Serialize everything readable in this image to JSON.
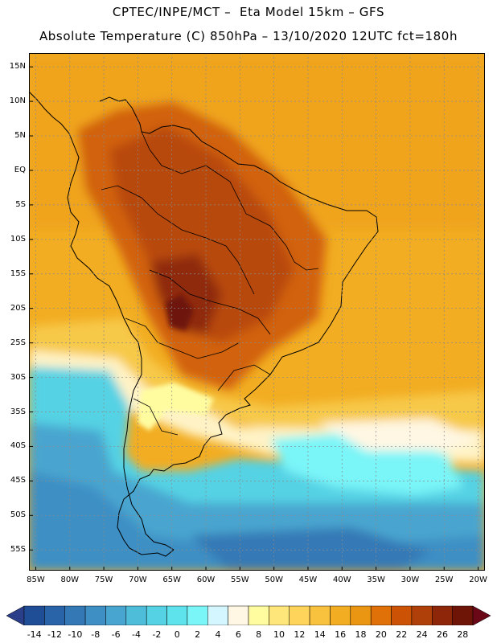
{
  "header": {
    "line1": "CPTEC/INPE/MCT –  Eta Model 15km – GFS",
    "line2": "Absolute Temperature (C) 850hPa – 13/10/2020 12UTC fct=180h"
  },
  "map": {
    "lat_labels": [
      "15N",
      "10N",
      "5N",
      "EQ",
      "5S",
      "10S",
      "15S",
      "20S",
      "25S",
      "30S",
      "35S",
      "40S",
      "45S",
      "50S",
      "55S"
    ],
    "lat_values": [
      15,
      10,
      5,
      0,
      -5,
      -10,
      -15,
      -20,
      -25,
      -30,
      -35,
      -40,
      -45,
      -50,
      -55
    ],
    "lon_labels": [
      "85W",
      "80W",
      "75W",
      "70W",
      "65W",
      "60W",
      "55W",
      "50W",
      "45W",
      "40W",
      "35W",
      "30W",
      "25W",
      "20W"
    ],
    "lon_values": [
      -85,
      -80,
      -75,
      -70,
      -65,
      -60,
      -55,
      -50,
      -45,
      -40,
      -35,
      -30,
      -25,
      -20
    ],
    "lon_range": [
      -86,
      -19
    ],
    "lat_range": [
      -58,
      17
    ]
  },
  "colorbar": {
    "labels": [
      "-14",
      "-12",
      "-10",
      "-8",
      "-6",
      "-4",
      "-2",
      "0",
      "2",
      "4",
      "6",
      "8",
      "10",
      "12",
      "14",
      "16",
      "18",
      "20",
      "22",
      "24",
      "26",
      "28"
    ],
    "colors": [
      "#1f4e96",
      "#2a64a8",
      "#3479b6",
      "#3d8fc4",
      "#48a5cf",
      "#4ebdda",
      "#55d2e4",
      "#5ee2ec",
      "#7af5f8",
      "#d4f7ff",
      "#fff7e3",
      "#fffca0",
      "#ffe67a",
      "#ffd45a",
      "#f8c23e",
      "#f2ad22",
      "#eb9612",
      "#e07008",
      "#cc5206",
      "#b0400a",
      "#8e260a",
      "#6e1508"
    ],
    "left_arrow": "#2a3e8a",
    "right_arrow": "#6a0818"
  }
}
